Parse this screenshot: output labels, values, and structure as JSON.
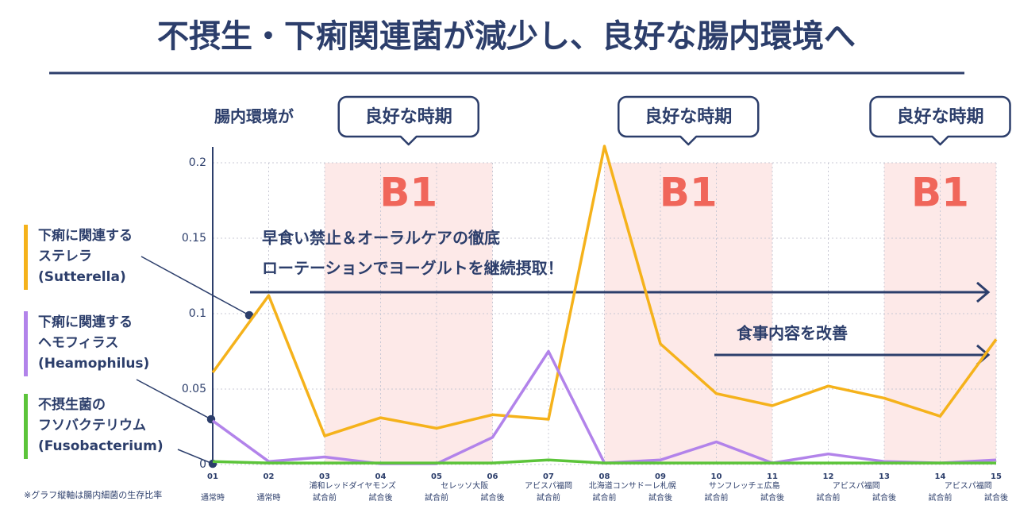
{
  "chart_data": {
    "type": "line",
    "title": "不摂生・下痢関連菌が減少し、良好な腸内環境へ",
    "intro": "腸内環境が",
    "footnote": "※グラフ縦軸は腸内細菌の生存比率",
    "categories": [
      "01",
      "02",
      "03",
      "04",
      "05",
      "06",
      "07",
      "08",
      "09",
      "10",
      "11",
      "12",
      "13",
      "14",
      "15"
    ],
    "timings": [
      "通常時",
      "通常時",
      "試合前",
      "試合後",
      "試合前",
      "試合後",
      "試合前",
      "試合前",
      "試合後",
      "試合前",
      "試合後",
      "試合前",
      "試合後",
      "試合前",
      "試合後"
    ],
    "teams": [
      null,
      null,
      "浦和レッドダイヤモンズ",
      null,
      "セレッソ大阪",
      null,
      "アビスパ福岡",
      "北海道コンサドーレ札幌",
      null,
      "サンフレッチェ広島",
      null,
      "アビスパ福岡",
      null,
      "アビスパ福岡",
      null
    ],
    "periods": [
      {
        "label": "B1",
        "callout": "良好な時期",
        "from": "03",
        "to": "06"
      },
      {
        "label": "B1",
        "callout": "良好な時期",
        "from": "08",
        "to": "11"
      },
      {
        "label": "B1",
        "callout": "良好な時期",
        "from": "13",
        "to": "15"
      }
    ],
    "annotations": [
      {
        "lines": [
          "早食い禁止＆オーラルケアの徹底",
          "ローテーションでヨーグルトを継続摂取！"
        ]
      },
      {
        "lines": [
          "食事内容を改善"
        ]
      }
    ],
    "series": [
      {
        "label": [
          "下痢に関連する",
          "ステレラ",
          "(Sutterella)"
        ],
        "color": "#f5b21b",
        "values": [
          0.061,
          0.112,
          0.019,
          0.031,
          0.024,
          0.033,
          0.03,
          0.211,
          0.08,
          0.047,
          0.039,
          0.052,
          0.044,
          0.032,
          0.083
        ]
      },
      {
        "label": [
          "下痢に関連する",
          "ヘモフィラス",
          "(Heamophilus)"
        ],
        "color": "#b283ea",
        "values": [
          0.029,
          0.002,
          0.005,
          0.0005,
          0.0005,
          0.018,
          0.075,
          0.001,
          0.003,
          0.015,
          0.001,
          0.007,
          0.002,
          0.001,
          0.003
        ]
      },
      {
        "label": [
          "不摂生菌の",
          "フソバクテリウム",
          "(Fusobacterium)"
        ],
        "color": "#5cc43a",
        "values": [
          0.002,
          0.001,
          0.001,
          0.001,
          0.001,
          0.001,
          0.003,
          0.001,
          0.001,
          0.001,
          0.001,
          0.001,
          0.001,
          0.001,
          0.001
        ]
      }
    ],
    "ylim": [
      0,
      0.2
    ],
    "yticks": [
      0,
      0.05,
      0.1,
      0.15,
      0.2
    ],
    "grid": true
  }
}
